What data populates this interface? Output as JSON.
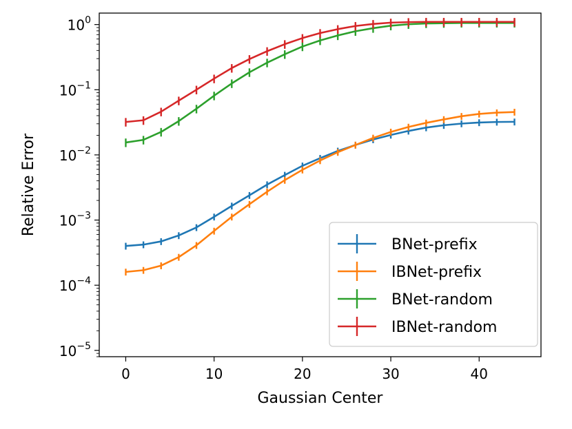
{
  "chart_data": {
    "type": "line",
    "title": "",
    "xlabel": "Gaussian Center",
    "ylabel": "Relative Error",
    "yscale": "log",
    "xlim": [
      -3,
      47
    ],
    "ylim": [
      8e-06,
      1.5
    ],
    "xticks": [
      0,
      10,
      20,
      30,
      40
    ],
    "xtick_labels": [
      "0",
      "10",
      "20",
      "30",
      "40"
    ],
    "yticks": [
      {
        "value": 1,
        "base": "10",
        "exp": "0"
      },
      {
        "value": 0.1,
        "base": "10",
        "exp": "−1"
      },
      {
        "value": 0.01,
        "base": "10",
        "exp": "−2"
      },
      {
        "value": 0.001,
        "base": "10",
        "exp": "−3"
      },
      {
        "value": 0.0001,
        "base": "10",
        "exp": "−4"
      },
      {
        "value": 1e-05,
        "base": "10",
        "exp": "−5"
      }
    ],
    "grid": false,
    "legend_position": "lower-right",
    "x": [
      0,
      2,
      4,
      6,
      8,
      10,
      12,
      14,
      16,
      18,
      20,
      22,
      24,
      26,
      28,
      30,
      32,
      34,
      36,
      38,
      40,
      42,
      44
    ],
    "series": [
      {
        "name": "BNet-prefix",
        "color": "#1f77b4",
        "values": [
          0.0004,
          0.00042,
          0.00047,
          0.00058,
          0.00077,
          0.00112,
          0.00165,
          0.0024,
          0.0035,
          0.0049,
          0.0068,
          0.0089,
          0.0115,
          0.0142,
          0.0172,
          0.0202,
          0.0233,
          0.0262,
          0.0285,
          0.0302,
          0.0314,
          0.032,
          0.0322
        ],
        "error_frac": 0.12
      },
      {
        "name": "IBNet-prefix",
        "color": "#ff7f0e",
        "values": [
          0.00016,
          0.00017,
          0.0002,
          0.00027,
          0.00041,
          0.00068,
          0.00112,
          0.00175,
          0.00272,
          0.0041,
          0.0059,
          0.0082,
          0.011,
          0.0142,
          0.0182,
          0.0225,
          0.0268,
          0.031,
          0.035,
          0.0392,
          0.0425,
          0.0445,
          0.0455
        ],
        "error_frac": 0.12
      },
      {
        "name": "BNet-random",
        "color": "#2ca02c",
        "values": [
          0.0155,
          0.017,
          0.0225,
          0.033,
          0.051,
          0.081,
          0.125,
          0.185,
          0.26,
          0.35,
          0.46,
          0.57,
          0.68,
          0.79,
          0.88,
          0.96,
          1.01,
          1.04,
          1.05,
          1.06,
          1.06,
          1.06,
          1.06
        ],
        "error_frac": 0.15
      },
      {
        "name": "IBNet-random",
        "color": "#d62728",
        "values": [
          0.032,
          0.034,
          0.046,
          0.068,
          0.1,
          0.148,
          0.215,
          0.295,
          0.39,
          0.5,
          0.62,
          0.74,
          0.85,
          0.95,
          1.02,
          1.07,
          1.09,
          1.1,
          1.1,
          1.1,
          1.1,
          1.1,
          1.1
        ],
        "error_frac": 0.15
      }
    ]
  }
}
